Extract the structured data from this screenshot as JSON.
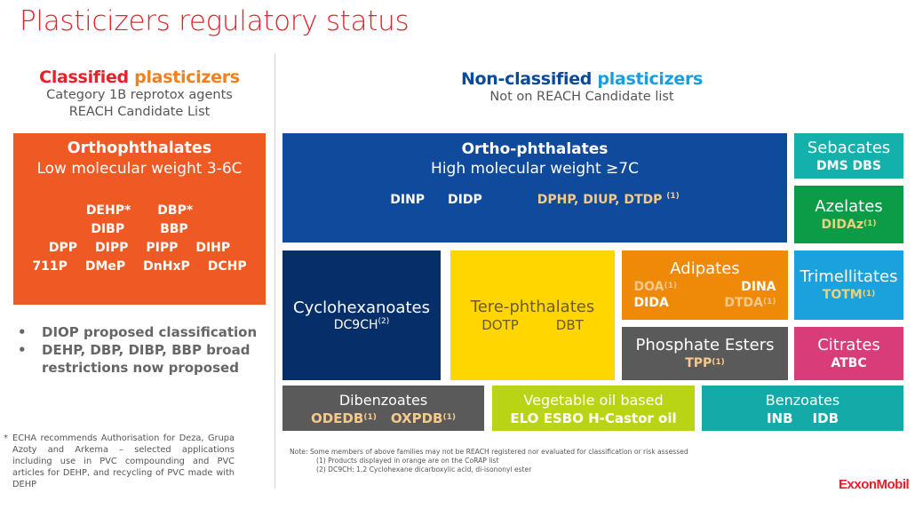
{
  "title": "Plasticizers regulatory status",
  "classified": {
    "heading_part1": "Classified ",
    "heading_part2": "plasticizers",
    "sub1": "Category 1B reprotox  agents",
    "sub2": "REACH Candidate List",
    "group": {
      "name": "Orthophthalates",
      "desc": "Low molecular weight 3-6C",
      "rows": [
        [
          "DEHP*",
          "DBP*"
        ],
        [
          "DIBP",
          "BBP"
        ],
        [
          "DPP",
          "DIPP",
          "PIPP",
          "DIHP"
        ],
        [
          "711P",
          "DMeP",
          "DnHxP",
          "DCHP"
        ]
      ]
    },
    "bullets": [
      "DIOP proposed classification",
      "DEHP, DBP, DIBP, BBP broad restrictions now proposed"
    ],
    "bullet_symbol": "•",
    "footnote_marker": "*",
    "footnote": "ECHA recommends Authorisation for Deza, Grupa Azoty and Arkema – selected applications including use in PVC compounding and PVC articles for DEHP, and recycling of PVC made with DEHP"
  },
  "non_classified": {
    "heading_part1": "Non-classified ",
    "heading_part2": "plasticizers",
    "sub": "Not on REACH Candidate list",
    "ortho_high": {
      "name": "Ortho-phthalates",
      "desc": "High molecular weight ≥7C",
      "m1": "DINP",
      "m2": "DIDP",
      "m3": "DPHP, DIUP, DTDP",
      "m3_sup": "(1)"
    },
    "cyclo": {
      "name": "Cyclohexanoates",
      "member": "DC9CH",
      "sup": "(2)"
    },
    "tere": {
      "name": "Tere-phthalates",
      "m1": "DOTP",
      "m2": "DBT"
    },
    "adipates": {
      "name": "Adipates",
      "m1": "DOA",
      "m2": "DINA",
      "m3": "DIDA",
      "m4": "DTDA",
      "sup": "(1)"
    },
    "phosphate": {
      "name": "Phosphate Esters",
      "member": "TPP",
      "sup": "(1)"
    },
    "sebacates": {
      "name": "Sebacates",
      "member": "DMS DBS"
    },
    "azelates": {
      "name": "Azelates",
      "member": "DIDAz",
      "sup": "(1)"
    },
    "trimellitates": {
      "name": "Trimellitates",
      "member": "TOTM",
      "sup": "(1)"
    },
    "citrates": {
      "name": "Citrates",
      "member": "ATBC"
    },
    "dibenzoates": {
      "name": "Dibenzoates",
      "m1": "ODEDB",
      "m2": "OXPDB",
      "sup": "(1)"
    },
    "vegetable": {
      "name": "Vegetable oil based",
      "member": "ELO ESBO H-Castor oil"
    },
    "benzoates": {
      "name": "Benzoates",
      "m1": "INB",
      "m2": "IDB"
    }
  },
  "notes": {
    "line1": "Note: Some members of above families may not be REACH registered nor evaluated for classification or risk assessed",
    "line2": "(1) Products displayed in orange are on the CoRAP list",
    "line3": "(2) DC9CH: 1,2 Cyclohexane dicarboxylic acid, di-isononyl ester"
  },
  "logo": "ExxonMobil",
  "colors": {
    "title_red": "#e8202a",
    "orthophthalates_low": "#ef5a24",
    "ortho_high": "#0f4a9c",
    "cyclohexanoates": "#062f6a",
    "terephthalates": "#ffd600",
    "adipates": "#ee8a08",
    "phosphate": "#5a5a5a",
    "sebacates": "#13b0ac",
    "azelates": "#0c9b47",
    "trimellitates": "#1ba2dc",
    "citrates": "#d83c79",
    "dibenzoates": "#5a5a5a",
    "vegetable": "#b8d414",
    "benzoates": "#13aaa8",
    "corap_orange_text": "#f5c98c"
  }
}
